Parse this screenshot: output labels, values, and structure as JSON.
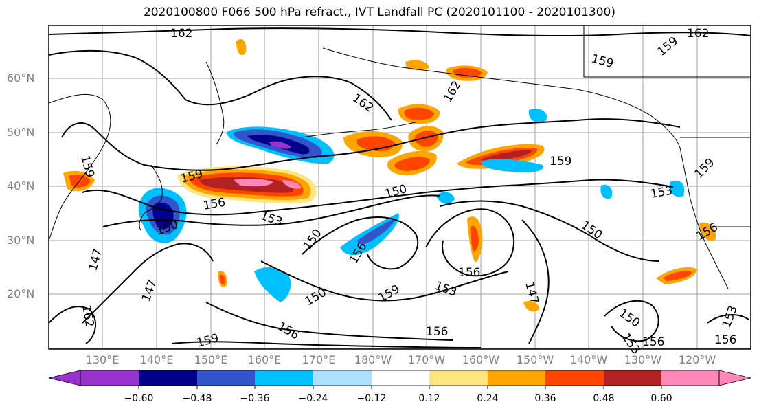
{
  "title": "2020100800 F066 500 hPa refract., IVT Landfall PC (2020101100 - 2020101300)",
  "lat_labels": [
    "60°N",
    "50°N",
    "40°N",
    "30°N",
    "20°N"
  ],
  "lon_labels": [
    "130°E",
    "140°E",
    "150°E",
    "160°E",
    "170°E",
    "180°W",
    "170°W",
    "160°W",
    "150°W",
    "140°W",
    "130°W",
    "120°W"
  ],
  "contour_labels": [
    "162",
    "162",
    "162",
    "159",
    "159",
    "162",
    "159",
    "159",
    "150",
    "156",
    "153",
    "153",
    "150",
    "150",
    "156",
    "156",
    "153",
    "159",
    "147",
    "147",
    "147",
    "150",
    "156",
    "159",
    "162",
    "156",
    "150",
    "153",
    "156",
    "153",
    "156",
    "159",
    "156",
    "159",
    "150"
  ],
  "colorbar": {
    "ticks": [
      "−0.60",
      "−0.48",
      "−0.36",
      "−0.24",
      "−0.12",
      "0.12",
      "0.24",
      "0.36",
      "0.48",
      "0.60"
    ],
    "colors": [
      "#9932CC",
      "#00008B",
      "#3355CC",
      "#00BFFF",
      "#ADDFFF",
      "#FFFFFF",
      "#FFE680",
      "#FFA500",
      "#FF4500",
      "#B22222",
      "#FF88BB"
    ]
  }
}
